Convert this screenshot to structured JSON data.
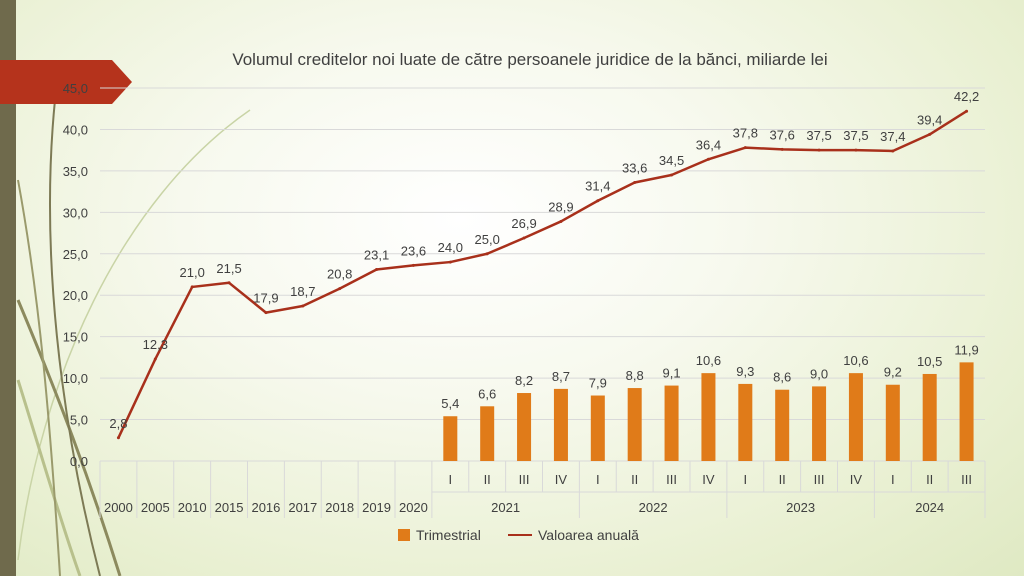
{
  "colors": {
    "bar": "#e07b19",
    "line": "#a8301b",
    "accent_arrow": "#b5331c",
    "side_bar": "#6f6a4c"
  },
  "chart_data": {
    "type": "bar+line",
    "title": "Volumul creditelor noi luate de către persoanele juridice de la bănci, miliarde lei",
    "ylim": [
      0,
      45
    ],
    "y_ticks": [
      "0,0",
      "5,0",
      "10,0",
      "15,0",
      "20,0",
      "25,0",
      "30,0",
      "35,0",
      "40,0",
      "45,0"
    ],
    "grid": true,
    "legend_position": "bottom",
    "categories": [
      "2000",
      "2005",
      "2010",
      "2015",
      "2016",
      "2017",
      "2018",
      "2019",
      "2020",
      "I",
      "II",
      "III",
      "IV",
      "I",
      "II",
      "III",
      "IV",
      "I",
      "II",
      "III",
      "IV",
      "I",
      "II",
      "III"
    ],
    "groups": [
      {
        "label": "2021",
        "start": 9,
        "end": 12
      },
      {
        "label": "2022",
        "start": 13,
        "end": 16
      },
      {
        "label": "2023",
        "start": 17,
        "end": 20
      },
      {
        "label": "2024",
        "start": 21,
        "end": 23
      }
    ],
    "series": [
      {
        "name": "Trimestrial",
        "type": "bar",
        "values": [
          null,
          null,
          null,
          null,
          null,
          null,
          null,
          null,
          null,
          5.4,
          6.6,
          8.2,
          8.7,
          7.9,
          8.8,
          9.1,
          10.6,
          9.3,
          8.6,
          9.0,
          10.6,
          9.2,
          10.5,
          11.9
        ],
        "labels": [
          "",
          "",
          "",
          "",
          "",
          "",
          "",
          "",
          "",
          "5,4",
          "6,6",
          "8,2",
          "8,7",
          "7,9",
          "8,8",
          "9,1",
          "10,6",
          "9,3",
          "8,6",
          "9,0",
          "10,6",
          "9,2",
          "10,5",
          "11,9"
        ]
      },
      {
        "name": "Valoarea anuală",
        "type": "line",
        "values": [
          2.8,
          12.3,
          21.0,
          21.5,
          17.9,
          18.7,
          20.8,
          23.1,
          23.6,
          24.0,
          25.0,
          26.9,
          28.9,
          31.4,
          33.6,
          34.5,
          36.4,
          37.8,
          37.6,
          37.5,
          37.5,
          37.4,
          39.4,
          42.2
        ],
        "labels": [
          "2,8",
          "12,3",
          "21,0",
          "21,5",
          "17,9",
          "18,7",
          "20,8",
          "23,1",
          "23,6",
          "24,0",
          "25,0",
          "26,9",
          "28,9",
          "31,4",
          "33,6",
          "34,5",
          "36,4",
          "37,8",
          "37,6",
          "37,5",
          "37,5",
          "37,4",
          "39,4",
          "42,2"
        ]
      }
    ]
  }
}
